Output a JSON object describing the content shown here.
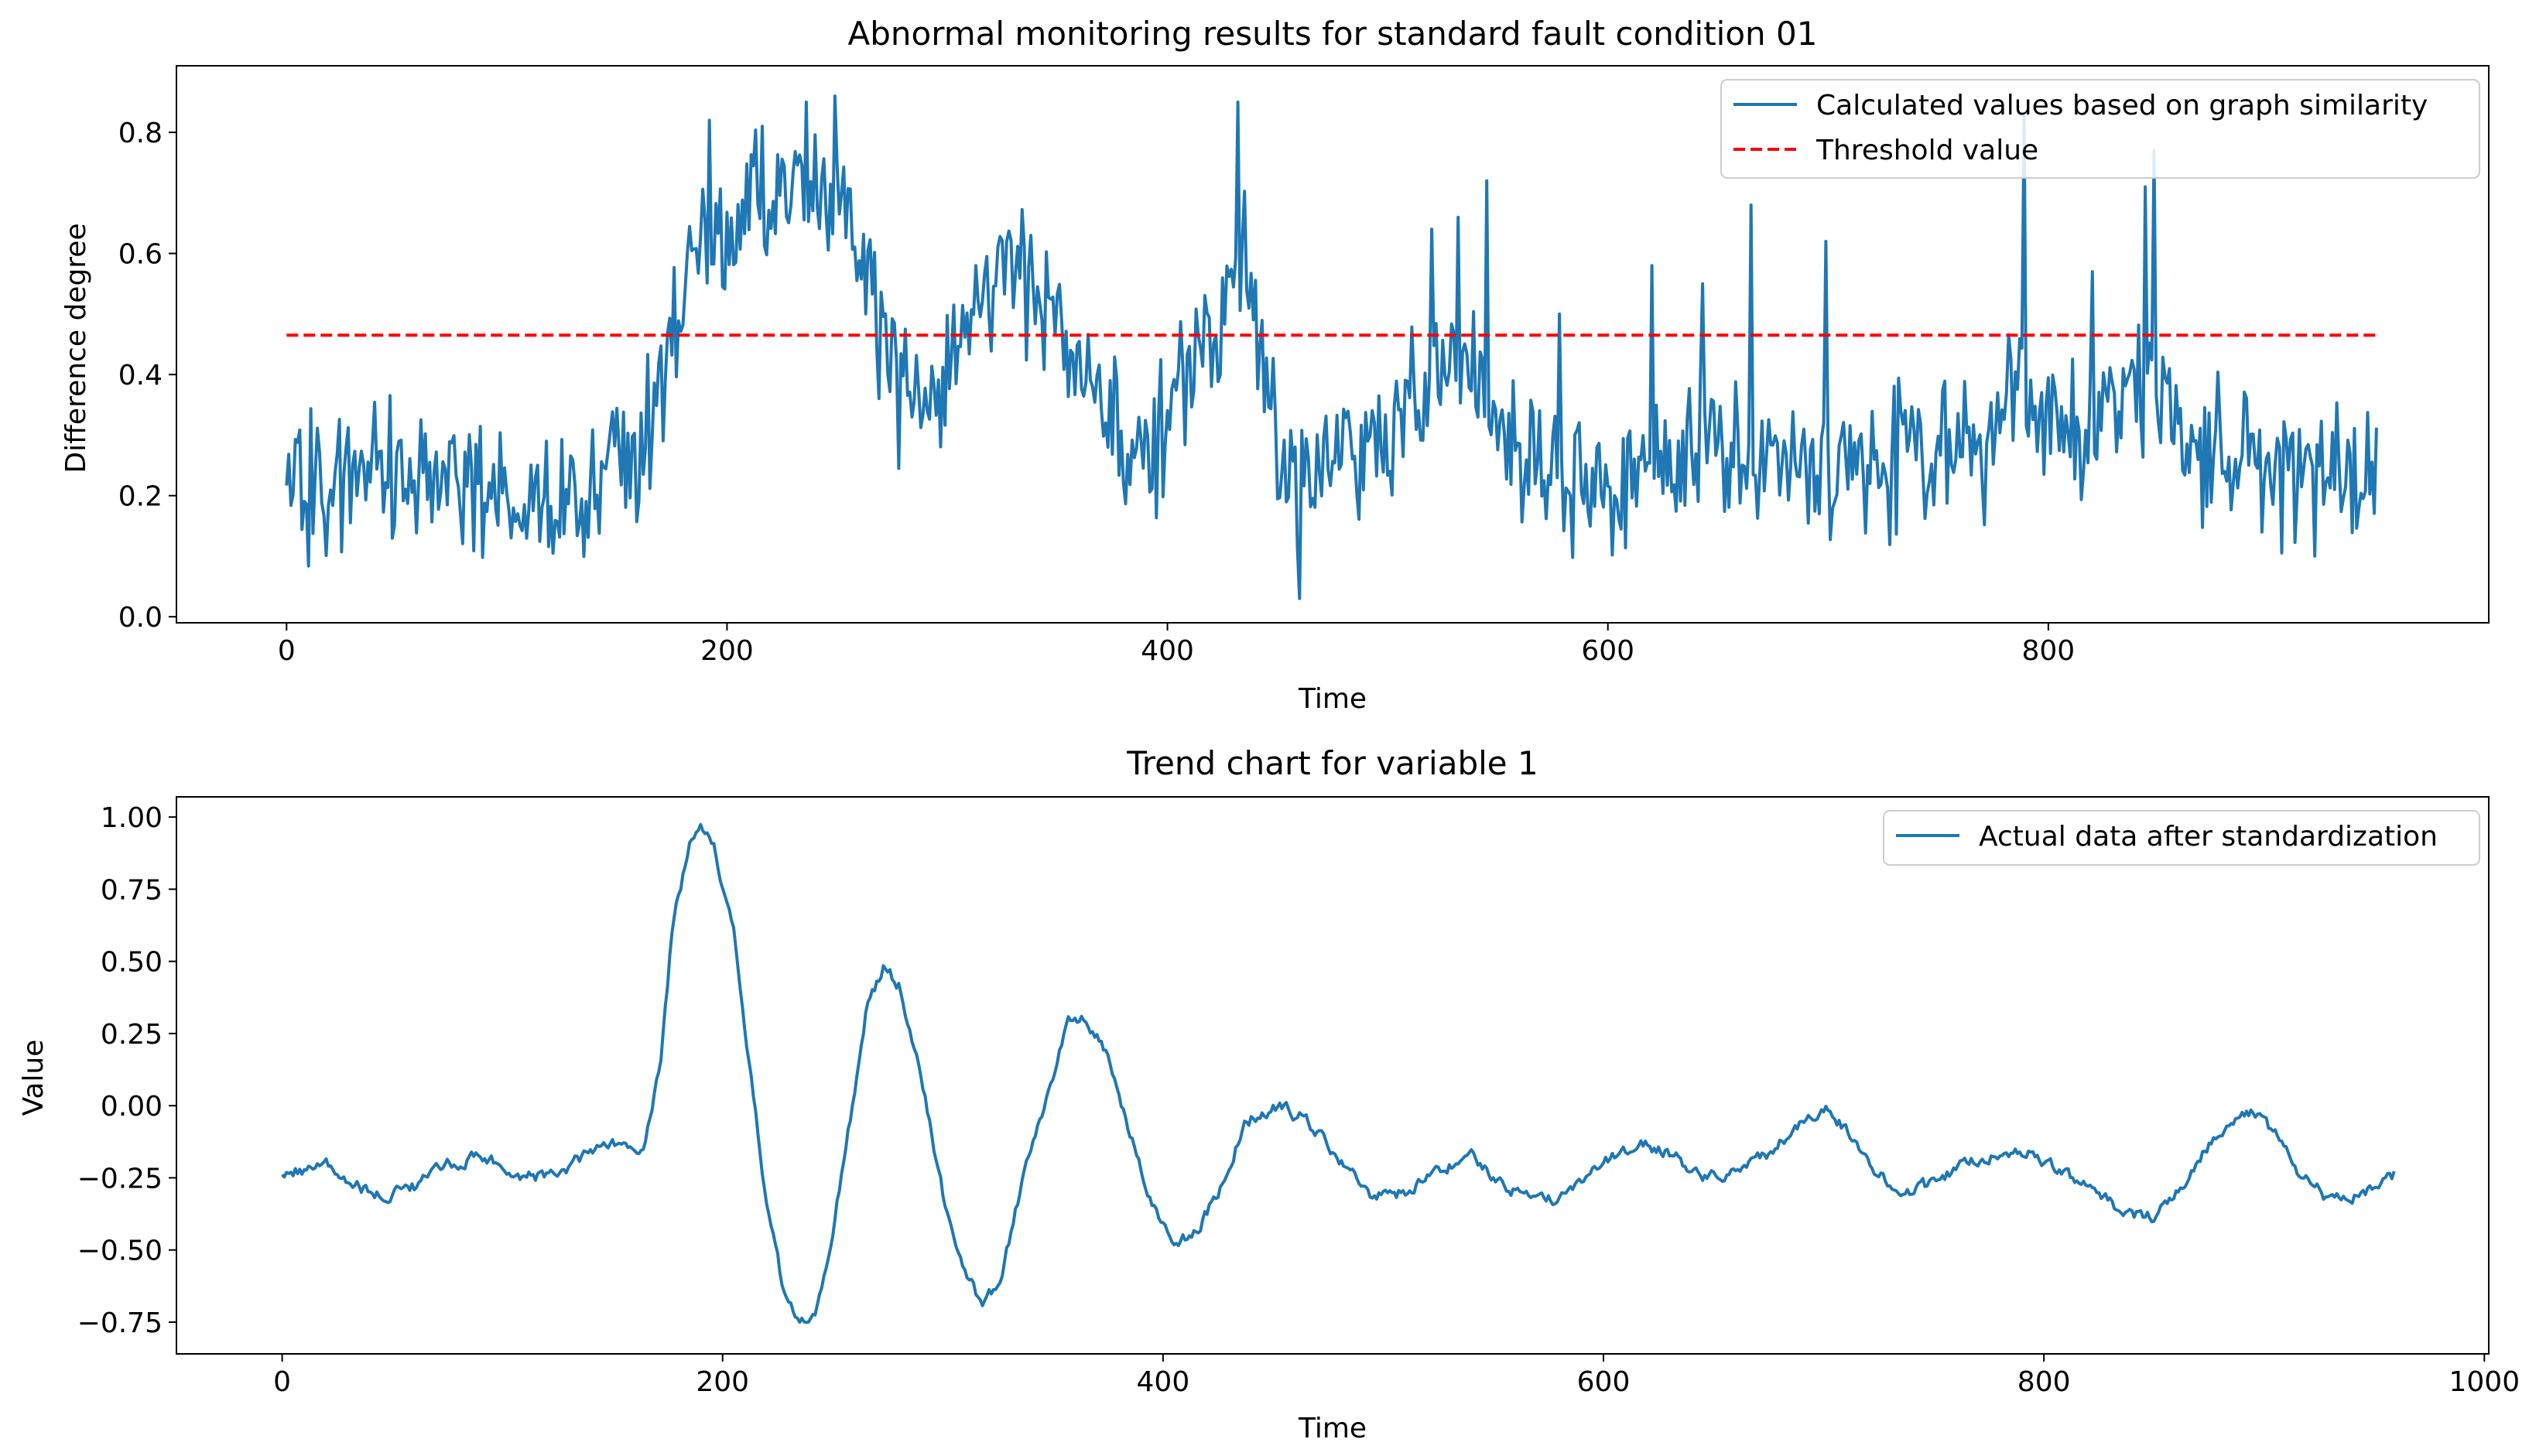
{
  "chart_data": [
    {
      "type": "line",
      "title": "Abnormal monitoring results for standard fault condition 01",
      "xlabel": "Time",
      "ylabel": "Difference degree",
      "xlim": [
        -50,
        1000
      ],
      "ylim": [
        -0.01,
        0.91
      ],
      "xticks": [
        0,
        200,
        400,
        600,
        800
      ],
      "yticks": [
        0.0,
        0.2,
        0.4,
        0.6,
        0.8
      ],
      "xtick_labels": [
        "0",
        "200",
        "400",
        "600",
        "800"
      ],
      "ytick_labels": [
        "0.0",
        "0.2",
        "0.4",
        "0.6",
        "0.8"
      ],
      "grid": false,
      "legend_position": "top-right",
      "series": [
        {
          "name": "Calculated values based on graph similarity",
          "style": "solid",
          "color": "#1f77b4",
          "n_points": 950,
          "envelope": [
            [
              0,
              0.2
            ],
            [
              20,
              0.22
            ],
            [
              40,
              0.24
            ],
            [
              60,
              0.22
            ],
            [
              80,
              0.21
            ],
            [
              100,
              0.2
            ],
            [
              120,
              0.2
            ],
            [
              140,
              0.22
            ],
            [
              155,
              0.25
            ],
            [
              165,
              0.33
            ],
            [
              175,
              0.45
            ],
            [
              185,
              0.58
            ],
            [
              200,
              0.64
            ],
            [
              215,
              0.68
            ],
            [
              230,
              0.7
            ],
            [
              245,
              0.7
            ],
            [
              255,
              0.64
            ],
            [
              265,
              0.55
            ],
            [
              275,
              0.4
            ],
            [
              285,
              0.33
            ],
            [
              295,
              0.38
            ],
            [
              310,
              0.52
            ],
            [
              325,
              0.58
            ],
            [
              340,
              0.54
            ],
            [
              355,
              0.42
            ],
            [
              370,
              0.33
            ],
            [
              385,
              0.24
            ],
            [
              395,
              0.28
            ],
            [
              405,
              0.4
            ],
            [
              420,
              0.45
            ],
            [
              435,
              0.6
            ],
            [
              445,
              0.35
            ],
            [
              455,
              0.25
            ],
            [
              465,
              0.22
            ],
            [
              480,
              0.25
            ],
            [
              495,
              0.3
            ],
            [
              510,
              0.35
            ],
            [
              525,
              0.42
            ],
            [
              540,
              0.4
            ],
            [
              555,
              0.3
            ],
            [
              570,
              0.25
            ],
            [
              590,
              0.23
            ],
            [
              610,
              0.22
            ],
            [
              630,
              0.25
            ],
            [
              650,
              0.28
            ],
            [
              670,
              0.26
            ],
            [
              690,
              0.24
            ],
            [
              710,
              0.25
            ],
            [
              730,
              0.26
            ],
            [
              750,
              0.27
            ],
            [
              770,
              0.28
            ],
            [
              785,
              0.38
            ],
            [
              795,
              0.32
            ],
            [
              810,
              0.3
            ],
            [
              825,
              0.34
            ],
            [
              840,
              0.36
            ],
            [
              850,
              0.38
            ],
            [
              860,
              0.32
            ],
            [
              875,
              0.27
            ],
            [
              890,
              0.25
            ],
            [
              905,
              0.22
            ],
            [
              920,
              0.2
            ],
            [
              935,
              0.24
            ],
            [
              949,
              0.24
            ]
          ],
          "noise_amplitude": 0.09,
          "peaks": [
            [
              192,
              0.82
            ],
            [
              216,
              0.81
            ],
            [
              236,
              0.85
            ],
            [
              249,
              0.86
            ],
            [
              432,
              0.85
            ],
            [
              460,
              0.03
            ],
            [
              520,
              0.64
            ],
            [
              532,
              0.66
            ],
            [
              545,
              0.72
            ],
            [
              578,
              0.5
            ],
            [
              620,
              0.58
            ],
            [
              643,
              0.55
            ],
            [
              665,
              0.68
            ],
            [
              699,
              0.62
            ],
            [
              789,
              0.83
            ],
            [
              820,
              0.57
            ],
            [
              844,
              0.71
            ],
            [
              848,
              0.77
            ]
          ]
        },
        {
          "name": "Threshold value",
          "style": "dashed",
          "color": "#ff0000",
          "x": [
            0,
            949
          ],
          "values": [
            0.465,
            0.465
          ]
        }
      ]
    },
    {
      "type": "line",
      "title": "Trend chart for variable 1",
      "xlabel": "Time",
      "ylabel": "Value",
      "xlim": [
        -48,
        1002
      ],
      "ylim": [
        -0.86,
        1.07
      ],
      "xticks": [
        0,
        200,
        400,
        600,
        800,
        1000
      ],
      "yticks": [
        1.0,
        0.75,
        0.5,
        0.25,
        0.0,
        -0.25,
        -0.5,
        -0.75
      ],
      "xtick_labels": [
        "0",
        "200",
        "400",
        "600",
        "800",
        "1000"
      ],
      "ytick_labels": [
        "1.00",
        "0.75",
        "0.50",
        "0.25",
        "0.00",
        "−0.25",
        "−0.50",
        "−0.75"
      ],
      "grid": false,
      "legend_position": "top-right",
      "series": [
        {
          "name": "Actual data after standardization",
          "style": "solid",
          "color": "#1f77b4",
          "n_points": 960,
          "noise_amplitude": 0.018,
          "keypoints": [
            [
              0,
              -0.23
            ],
            [
              20,
              -0.21
            ],
            [
              30,
              -0.27
            ],
            [
              45,
              -0.31
            ],
            [
              60,
              -0.28
            ],
            [
              75,
              -0.21
            ],
            [
              90,
              -0.17
            ],
            [
              105,
              -0.24
            ],
            [
              125,
              -0.25
            ],
            [
              140,
              -0.15
            ],
            [
              150,
              -0.13
            ],
            [
              158,
              -0.17
            ],
            [
              165,
              -0.12
            ],
            [
              172,
              0.15
            ],
            [
              177,
              0.6
            ],
            [
              185,
              0.92
            ],
            [
              190,
              0.97
            ],
            [
              196,
              0.9
            ],
            [
              205,
              0.6
            ],
            [
              213,
              0.1
            ],
            [
              220,
              -0.35
            ],
            [
              228,
              -0.65
            ],
            [
              235,
              -0.77
            ],
            [
              242,
              -0.72
            ],
            [
              250,
              -0.45
            ],
            [
              258,
              -0.05
            ],
            [
              265,
              0.32
            ],
            [
              273,
              0.48
            ],
            [
              280,
              0.42
            ],
            [
              290,
              0.1
            ],
            [
              300,
              -0.3
            ],
            [
              310,
              -0.58
            ],
            [
              318,
              -0.69
            ],
            [
              326,
              -0.6
            ],
            [
              335,
              -0.3
            ],
            [
              345,
              -0.02
            ],
            [
              357,
              0.3
            ],
            [
              365,
              0.3
            ],
            [
              375,
              0.18
            ],
            [
              385,
              -0.1
            ],
            [
              395,
              -0.33
            ],
            [
              405,
              -0.48
            ],
            [
              415,
              -0.44
            ],
            [
              425,
              -0.3
            ],
            [
              438,
              -0.05
            ],
            [
              452,
              0.0
            ],
            [
              465,
              -0.05
            ],
            [
              480,
              -0.18
            ],
            [
              495,
              -0.32
            ],
            [
              510,
              -0.3
            ],
            [
              525,
              -0.23
            ],
            [
              540,
              -0.18
            ],
            [
              555,
              -0.27
            ],
            [
              570,
              -0.34
            ],
            [
              585,
              -0.3
            ],
            [
              600,
              -0.2
            ],
            [
              615,
              -0.13
            ],
            [
              630,
              -0.16
            ],
            [
              645,
              -0.25
            ],
            [
              660,
              -0.23
            ],
            [
              675,
              -0.17
            ],
            [
              690,
              -0.06
            ],
            [
              700,
              0.0
            ],
            [
              710,
              -0.08
            ],
            [
              720,
              -0.2
            ],
            [
              735,
              -0.3
            ],
            [
              750,
              -0.27
            ],
            [
              765,
              -0.19
            ],
            [
              780,
              -0.17
            ],
            [
              795,
              -0.17
            ],
            [
              810,
              -0.24
            ],
            [
              825,
              -0.3
            ],
            [
              838,
              -0.38
            ],
            [
              850,
              -0.38
            ],
            [
              860,
              -0.3
            ],
            [
              872,
              -0.17
            ],
            [
              885,
              -0.04
            ],
            [
              895,
              -0.02
            ],
            [
              905,
              -0.1
            ],
            [
              915,
              -0.22
            ],
            [
              930,
              -0.33
            ],
            [
              945,
              -0.3
            ],
            [
              959,
              -0.24
            ]
          ]
        }
      ]
    }
  ]
}
